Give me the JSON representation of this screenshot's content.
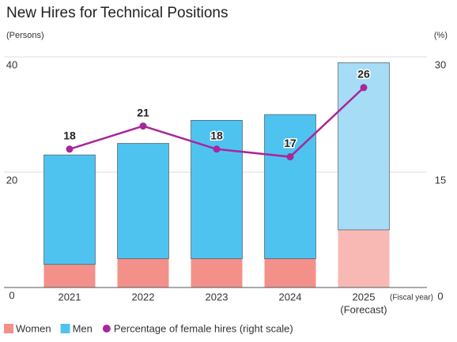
{
  "chart_data": {
    "type": "bar",
    "stacked": true,
    "title": "New Hires for Technical Positions",
    "y_label": "(Persons)",
    "y2_label": "(%)",
    "x_label": "(Fiscal year)",
    "categories": [
      "2021",
      "2022",
      "2023",
      "2024",
      "2025"
    ],
    "category_notes": [
      null,
      null,
      null,
      null,
      "(Forecast)"
    ],
    "series": [
      {
        "name": "Women",
        "color": "#f4908a",
        "colors": [
          "#f4908a",
          "#f4908a",
          "#f4908a",
          "#f4908a",
          "#f8b9b5"
        ],
        "values": [
          4,
          5,
          5,
          5,
          10
        ]
      },
      {
        "name": "Men",
        "color": "#4fc3f0",
        "colors": [
          "#4fc3f0",
          "#4fc3f0",
          "#4fc3f0",
          "#4fc3f0",
          "#a6dcf6"
        ],
        "values": [
          19,
          20,
          24,
          25,
          29
        ]
      },
      {
        "name": "Percentage of female hires (right scale)",
        "type": "line",
        "axis": "y2",
        "color": "#a8279a",
        "values": [
          18,
          21,
          18,
          17,
          26
        ]
      }
    ],
    "ylim": [
      0,
      40
    ],
    "yticks": [
      0,
      20,
      40
    ],
    "y2lim": [
      0,
      30
    ],
    "y2ticks": [
      0,
      15,
      30
    ],
    "grid": true
  }
}
